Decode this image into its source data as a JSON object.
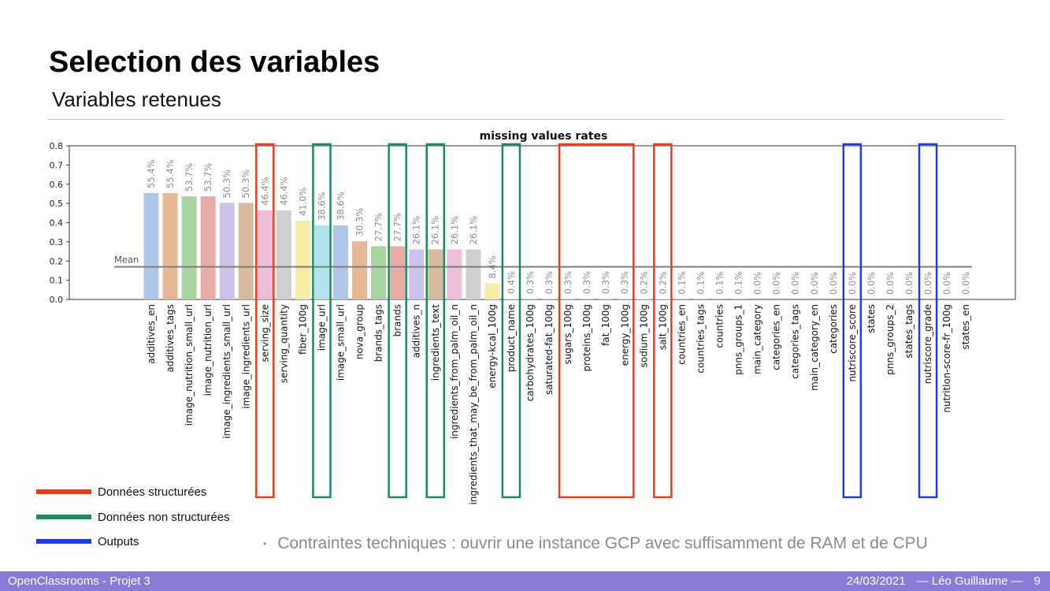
{
  "slide": {
    "title": "Selection des variables",
    "subtitle": "Variables retenues"
  },
  "legend": [
    {
      "label": "Données structurées",
      "color": "#ec3c1c"
    },
    {
      "label": "Données non structurées",
      "color": "#1c8a5a"
    },
    {
      "label": "Outputs",
      "color": "#1a3fd8"
    }
  ],
  "bullet": "Contraintes techniques : ouvrir une instance GCP avec suffisamment de RAM et de CPU",
  "footer": {
    "left": "OpenClassrooms - Projet 3",
    "date": "24/03/2021",
    "author": "— Léo Guillaume —",
    "page": "9"
  },
  "chart_data": {
    "type": "bar",
    "title": "missing values rates",
    "ylim": [
      0,
      0.8
    ],
    "yticks": [
      "0.0",
      "0.1",
      "0.2",
      "0.3",
      "0.4",
      "0.5",
      "0.6",
      "0.7",
      "0.8"
    ],
    "mean_label": "Mean",
    "mean_value": 0.17,
    "categories": [
      "additives_en",
      "additives_tags",
      "image_nutrition_small_url",
      "image_nutrition_url",
      "image_ingredients_small_url",
      "image_ingredients_url",
      "serving_size",
      "serving_quantity",
      "fiber_100g",
      "image_url",
      "image_small_url",
      "nova_group",
      "brands_tags",
      "brands",
      "additives_n",
      "ingredients_text",
      "ingredients_from_palm_oil_n",
      "ingredients_that_may_be_from_palm_oil_n",
      "energy-kcal_100g",
      "product_name",
      "carbohydrates_100g",
      "saturated-fat_100g",
      "sugars_100g",
      "proteins_100g",
      "fat_100g",
      "energy_100g",
      "sodium_100g",
      "salt_100g",
      "countries_en",
      "countries_tags",
      "countries",
      "pnns_groups_1",
      "main_category",
      "categories_en",
      "categories_tags",
      "main_category_en",
      "categories",
      "nutriscore_score",
      "states",
      "pnns_groups_2",
      "states_tags",
      "nutriscore_grade",
      "nutrition-score-fr_100g",
      "states_en"
    ],
    "values": [
      0.554,
      0.554,
      0.537,
      0.537,
      0.503,
      0.503,
      0.464,
      0.464,
      0.41,
      0.386,
      0.386,
      0.303,
      0.277,
      0.277,
      0.261,
      0.261,
      0.261,
      0.261,
      0.084,
      0.004,
      0.003,
      0.003,
      0.003,
      0.003,
      0.003,
      0.003,
      0.002,
      0.002,
      0.001,
      0.001,
      0.001,
      0.001,
      0.0,
      0.0,
      0.0,
      0.0,
      0.0,
      0.0,
      0.0,
      0.0,
      0.0,
      0.0,
      0.0,
      0.0
    ],
    "value_labels": [
      "55.4%",
      "55.4%",
      "53.7%",
      "53.7%",
      "50.3%",
      "50.3%",
      "46.4%",
      "46.4%",
      "41.0%",
      "38.6%",
      "38.6%",
      "30.3%",
      "27.7%",
      "27.7%",
      "26.1%",
      "26.1%",
      "26.1%",
      "26.1%",
      "8.4%",
      "0.4%",
      "0.3%",
      "0.3%",
      "0.3%",
      "0.3%",
      "0.3%",
      "0.3%",
      "0.2%",
      "0.2%",
      "0.1%",
      "0.1%",
      "0.1%",
      "0.1%",
      "0.0%",
      "0.0%",
      "0.0%",
      "0.0%",
      "0.0%",
      "0.0%",
      "0.0%",
      "0.0%",
      "0.0%",
      "0.0%",
      "0.0%",
      "0.0%"
    ],
    "bar_colors": [
      "#aec7e8",
      "#e8b896",
      "#a8d5a0",
      "#e8aba6",
      "#cdc2ee",
      "#d7b99e",
      "#edbcd9",
      "#cfcfcf",
      "#f5eca8",
      "#b2e2ea",
      "#aec7e8",
      "#e8b896",
      "#a8d5a0",
      "#e8aba6",
      "#cdc2ee",
      "#d7b99e",
      "#edbcd9",
      "#cfcfcf",
      "#f5eca8",
      "#b2e2ea",
      "#aec7e8",
      "#e8b896",
      "#a8d5a0",
      "#e8aba6",
      "#cdc2ee",
      "#d7b99e",
      "#edbcd9",
      "#cfcfcf",
      "#f5eca8",
      "#b2e2ea",
      "#aec7e8",
      "#e8b896",
      "#a8d5a0",
      "#e8aba6",
      "#cdc2ee",
      "#d7b99e",
      "#edbcd9",
      "#cfcfcf",
      "#f5eca8",
      "#b2e2ea",
      "#aec7e8",
      "#e8b896",
      "#a8d5a0",
      "#e8aba6"
    ],
    "highlight_groups": [
      {
        "type": "structured",
        "color": "#ec3c1c",
        "from": 6,
        "to": 6
      },
      {
        "type": "unstructured",
        "color": "#1c8a5a",
        "from": 9,
        "to": 9
      },
      {
        "type": "unstructured",
        "color": "#1c8a5a",
        "from": 13,
        "to": 13
      },
      {
        "type": "unstructured",
        "color": "#1c8a5a",
        "from": 15,
        "to": 15
      },
      {
        "type": "unstructured",
        "color": "#1c8a5a",
        "from": 19,
        "to": 19
      },
      {
        "type": "structured",
        "color": "#ec3c1c",
        "from": 22,
        "to": 25
      },
      {
        "type": "structured",
        "color": "#ec3c1c",
        "from": 27,
        "to": 27
      },
      {
        "type": "output",
        "color": "#1a3fd8",
        "from": 37,
        "to": 37
      },
      {
        "type": "output",
        "color": "#1a3fd8",
        "from": 41,
        "to": 41
      }
    ]
  }
}
